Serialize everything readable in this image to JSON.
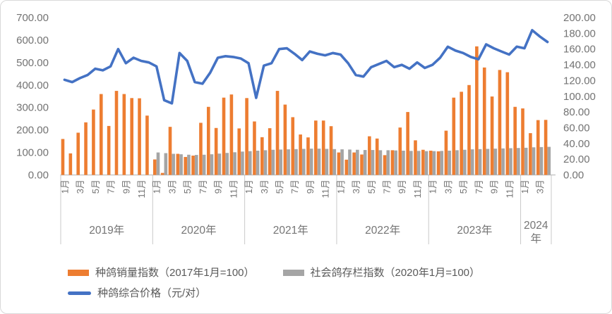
{
  "chart_data": {
    "type": "combo-bar-line",
    "plot_background": "#FFFFFF",
    "gridlines": "off",
    "legend_position": "bottom-left",
    "left_axis": {
      "min": 0,
      "max": 700,
      "step": 100,
      "ticks": [
        "700.00",
        "600.00",
        "500.00",
        "400.00",
        "300.00",
        "200.00",
        "100.00",
        "0.00"
      ]
    },
    "right_axis": {
      "min": 0,
      "max": 200,
      "step": 20,
      "ticks": [
        "200.00",
        "180.00",
        "160.00",
        "140.00",
        "120.00",
        "100.00",
        "80.00",
        "60.00",
        "40.00",
        "20.00",
        "0.00"
      ]
    },
    "x_axis": {
      "years": [
        {
          "label": "2019年",
          "months": 12
        },
        {
          "label": "2020年",
          "months": 12
        },
        {
          "label": "2021年",
          "months": 12
        },
        {
          "label": "2022年",
          "months": 12
        },
        {
          "label": "2023年",
          "months": 12
        },
        {
          "label": "2024年",
          "months": 4
        }
      ],
      "month_ticks": [
        "1月",
        "3月",
        "5月",
        "7月",
        "9月",
        "11月"
      ]
    },
    "series": [
      {
        "name": "种鸽销量指数（2017年1月=100）",
        "type": "bar",
        "axis": "left",
        "color": "#ED7D31",
        "values": [
          160,
          96,
          188,
          234,
          291,
          360,
          218,
          374,
          360,
          342,
          341,
          264,
          69,
          9,
          214,
          94,
          80,
          86,
          232,
          303,
          209,
          344,
          358,
          207,
          342,
          238,
          168,
          208,
          374,
          313,
          257,
          180,
          167,
          242,
          242,
          217,
          100,
          68,
          100,
          91,
          172,
          162,
          88,
          110,
          211,
          280,
          154,
          112,
          108,
          105,
          197,
          344,
          370,
          400,
          572,
          478,
          349,
          467,
          457,
          303,
          296,
          186,
          244,
          245
        ]
      },
      {
        "name": "社会鸽存栏指数（2020年1月=100）",
        "type": "bar",
        "axis": "left",
        "color": "#A5A5A5",
        "values": [
          null,
          null,
          null,
          null,
          null,
          null,
          null,
          null,
          null,
          null,
          null,
          null,
          100,
          97,
          94,
          92,
          90,
          89,
          90,
          92,
          95,
          98,
          101,
          104,
          106,
          108,
          110,
          112,
          113,
          114,
          115,
          116,
          117,
          117,
          116,
          115,
          114,
          113,
          112,
          111,
          111,
          110,
          110,
          109,
          108,
          107,
          107,
          106,
          106,
          107,
          108,
          110,
          112,
          114,
          115,
          116,
          117,
          118,
          119,
          120,
          121,
          123,
          124,
          125
        ]
      },
      {
        "name": "种鸽综合价格（元/对）",
        "type": "line",
        "axis": "right",
        "color": "#4472C4",
        "values": [
          121,
          118,
          123,
          127,
          135,
          133,
          138,
          160,
          142,
          149,
          145,
          143,
          138,
          95,
          91,
          155,
          145,
          118,
          116,
          130,
          149,
          151,
          150,
          148,
          142,
          98,
          139,
          142,
          160,
          161,
          154,
          146,
          157,
          154,
          152,
          155,
          153,
          142,
          127,
          125,
          137,
          141,
          145,
          137,
          140,
          135,
          143,
          136,
          140,
          149,
          163,
          158,
          155,
          150,
          147,
          166,
          161,
          157,
          153,
          163,
          161,
          184,
          176,
          169
        ]
      }
    ]
  }
}
